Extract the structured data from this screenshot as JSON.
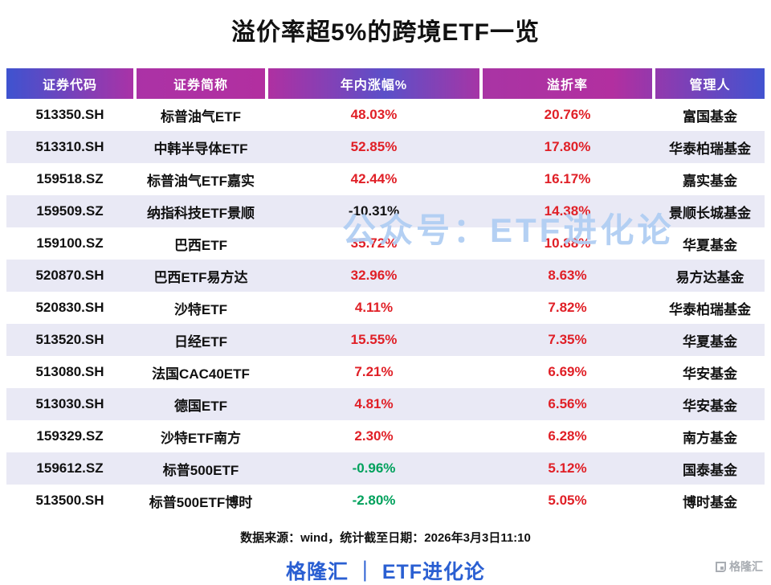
{
  "title": "溢价率超5%的跨境ETF一览",
  "watermark": "公众号：ETF进化论",
  "chart_data": {
    "type": "table",
    "title": "溢价率超5%的跨境ETF一览",
    "headers": [
      "证券代码",
      "证券简称",
      "年内涨幅%",
      "溢折率",
      "管理人"
    ],
    "rows": [
      {
        "code": "513350.SH",
        "name": "标普油气ETF",
        "ytd": "48.03%",
        "ytd_color": "red",
        "premium": "20.76%",
        "premium_color": "red",
        "manager": "富国基金"
      },
      {
        "code": "513310.SH",
        "name": "中韩半导体ETF",
        "ytd": "52.85%",
        "ytd_color": "red",
        "premium": "17.80%",
        "premium_color": "red",
        "manager": "华泰柏瑞基金"
      },
      {
        "code": "159518.SZ",
        "name": "标普油气ETF嘉实",
        "ytd": "42.44%",
        "ytd_color": "red",
        "premium": "16.17%",
        "premium_color": "red",
        "manager": "嘉实基金"
      },
      {
        "code": "159509.SZ",
        "name": "纳指科技ETF景顺",
        "ytd": "-10.31%",
        "ytd_color": "black",
        "premium": "14.38%",
        "premium_color": "red",
        "manager": "景顺长城基金"
      },
      {
        "code": "159100.SZ",
        "name": "巴西ETF",
        "ytd": "35.72%",
        "ytd_color": "red",
        "premium": "10.88%",
        "premium_color": "red",
        "manager": "华夏基金"
      },
      {
        "code": "520870.SH",
        "name": "巴西ETF易方达",
        "ytd": "32.96%",
        "ytd_color": "red",
        "premium": "8.63%",
        "premium_color": "red",
        "manager": "易方达基金"
      },
      {
        "code": "520830.SH",
        "name": "沙特ETF",
        "ytd": "4.11%",
        "ytd_color": "red",
        "premium": "7.82%",
        "premium_color": "red",
        "manager": "华泰柏瑞基金"
      },
      {
        "code": "513520.SH",
        "name": "日经ETF",
        "ytd": "15.55%",
        "ytd_color": "red",
        "premium": "7.35%",
        "premium_color": "red",
        "manager": "华夏基金"
      },
      {
        "code": "513080.SH",
        "name": "法国CAC40ETF",
        "ytd": "7.21%",
        "ytd_color": "red",
        "premium": "6.69%",
        "premium_color": "red",
        "manager": "华安基金"
      },
      {
        "code": "513030.SH",
        "name": "德国ETF",
        "ytd": "4.81%",
        "ytd_color": "red",
        "premium": "6.56%",
        "premium_color": "red",
        "manager": "华安基金"
      },
      {
        "code": "159329.SZ",
        "name": "沙特ETF南方",
        "ytd": "2.30%",
        "ytd_color": "red",
        "premium": "6.28%",
        "premium_color": "red",
        "manager": "南方基金"
      },
      {
        "code": "159612.SZ",
        "name": "标普500ETF",
        "ytd": "-0.96%",
        "ytd_color": "green",
        "premium": "5.12%",
        "premium_color": "red",
        "manager": "国泰基金"
      },
      {
        "code": "513500.SH",
        "name": "标普500ETF博时",
        "ytd": "-2.80%",
        "ytd_color": "green",
        "premium": "5.05%",
        "premium_color": "red",
        "manager": "博时基金"
      }
    ]
  },
  "footer": {
    "source": "数据来源：wind，统计截至日期：2026年3月3日11:10",
    "brand": "格隆汇 ｜ ETF进化论"
  },
  "corner_logo": "格隆汇",
  "colors": {
    "positive_red": "#e01f26",
    "negative_green": "#00a15c",
    "neutral_black": "#111111",
    "header_blue": "#3e53d0",
    "header_magenta": "#b22fa0",
    "stripe_lavender": "#e9e9f5",
    "brand_blue": "#2a5fd2",
    "watermark_blue": "#b0cdf2"
  }
}
